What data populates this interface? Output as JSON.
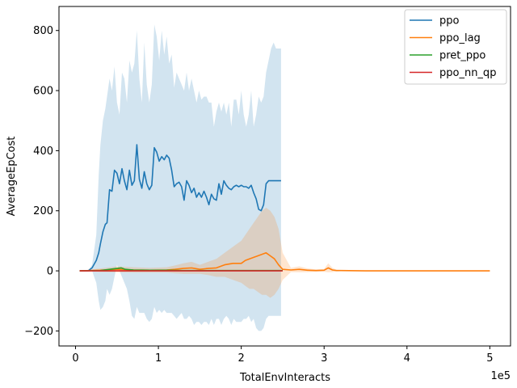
{
  "chart_data": {
    "type": "line",
    "xlabel": "TotalEnvInteracts",
    "ylabel": "AverageEpCost",
    "x_offset_label": "1e5",
    "xlim": [
      -0.2,
      5.25
    ],
    "ylim": [
      -250,
      880
    ],
    "x_ticks": [
      0,
      1,
      2,
      3,
      4,
      5
    ],
    "x_tick_labels": [
      "0",
      "1",
      "2",
      "3",
      "4",
      "5"
    ],
    "y_ticks": [
      -200,
      0,
      200,
      400,
      600,
      800
    ],
    "y_tick_labels": [
      "−200",
      "0",
      "200",
      "400",
      "600",
      "800"
    ],
    "grid": false,
    "legend_position": "top-right",
    "series": [
      {
        "name": "ppo",
        "color": "#1f77b4",
        "x": [
          0.05,
          0.15,
          0.2,
          0.25,
          0.28,
          0.3,
          0.33,
          0.36,
          0.38,
          0.41,
          0.44,
          0.47,
          0.5,
          0.53,
          0.56,
          0.59,
          0.62,
          0.65,
          0.68,
          0.71,
          0.74,
          0.77,
          0.8,
          0.83,
          0.86,
          0.89,
          0.92,
          0.95,
          0.98,
          1.01,
          1.04,
          1.07,
          1.1,
          1.13,
          1.16,
          1.19,
          1.22,
          1.25,
          1.28,
          1.31,
          1.34,
          1.37,
          1.4,
          1.43,
          1.46,
          1.49,
          1.52,
          1.55,
          1.58,
          1.61,
          1.64,
          1.67,
          1.7,
          1.73,
          1.76,
          1.79,
          1.82,
          1.85,
          1.88,
          1.91,
          1.94,
          1.97,
          2.0,
          2.03,
          2.06,
          2.09,
          2.12,
          2.15,
          2.18,
          2.21,
          2.24,
          2.27,
          2.3,
          2.33,
          2.36,
          2.39,
          2.42,
          2.45,
          2.48
        ],
        "y": [
          0,
          0,
          10,
          35,
          60,
          90,
          130,
          155,
          160,
          270,
          265,
          335,
          325,
          290,
          340,
          300,
          270,
          335,
          285,
          300,
          420,
          305,
          275,
          330,
          290,
          270,
          285,
          410,
          395,
          365,
          380,
          370,
          385,
          375,
          335,
          280,
          290,
          295,
          280,
          235,
          300,
          285,
          260,
          275,
          245,
          260,
          245,
          265,
          245,
          220,
          255,
          240,
          235,
          290,
          255,
          300,
          285,
          275,
          270,
          280,
          285,
          280,
          285,
          280,
          280,
          275,
          285,
          260,
          240,
          205,
          200,
          220,
          290,
          300,
          300,
          300,
          300,
          300,
          300
        ],
        "band_upper": [
          0,
          0,
          20,
          120,
          320,
          420,
          500,
          540,
          580,
          640,
          600,
          680,
          560,
          520,
          660,
          640,
          560,
          700,
          660,
          690,
          800,
          640,
          560,
          760,
          620,
          560,
          620,
          820,
          780,
          700,
          800,
          720,
          780,
          690,
          720,
          610,
          660,
          640,
          620,
          600,
          660,
          600,
          640,
          600,
          560,
          600,
          570,
          580,
          580,
          560,
          560,
          480,
          530,
          560,
          530,
          560,
          520,
          560,
          480,
          570,
          570,
          520,
          600,
          520,
          480,
          520,
          600,
          480,
          520,
          580,
          560,
          580,
          660,
          700,
          740,
          760,
          740,
          740,
          740
        ],
        "band_lower": [
          0,
          0,
          0,
          -40,
          -100,
          -130,
          -120,
          -100,
          -60,
          -80,
          -60,
          -20,
          20,
          0,
          -20,
          -40,
          -60,
          -100,
          -150,
          -160,
          -120,
          -140,
          -140,
          -140,
          -160,
          -170,
          -160,
          -120,
          -140,
          -130,
          -140,
          -130,
          -140,
          -140,
          -140,
          -150,
          -160,
          -150,
          -140,
          -160,
          -160,
          -150,
          -160,
          -180,
          -170,
          -170,
          -180,
          -170,
          -170,
          -180,
          -160,
          -180,
          -160,
          -160,
          -180,
          -160,
          -150,
          -160,
          -180,
          -160,
          -170,
          -170,
          -170,
          -160,
          -160,
          -150,
          -170,
          -160,
          -190,
          -200,
          -200,
          -190,
          -160,
          -150,
          -150,
          -150,
          -150,
          -150,
          -150
        ]
      },
      {
        "name": "ppo_lag",
        "color": "#ff7f0e",
        "x": [
          0.05,
          0.3,
          0.5,
          0.7,
          0.9,
          1.1,
          1.2,
          1.3,
          1.4,
          1.5,
          1.6,
          1.7,
          1.8,
          1.9,
          2.0,
          2.05,
          2.1,
          2.15,
          2.2,
          2.25,
          2.3,
          2.35,
          2.4,
          2.45,
          2.5,
          2.6,
          2.7,
          2.8,
          2.9,
          3.0,
          3.05,
          3.1,
          3.15,
          3.2,
          3.5,
          4.0,
          4.5,
          5.0
        ],
        "y": [
          0,
          2,
          5,
          3,
          2,
          3,
          5,
          8,
          10,
          5,
          8,
          10,
          20,
          25,
          25,
          35,
          40,
          45,
          50,
          55,
          60,
          50,
          40,
          20,
          5,
          3,
          5,
          2,
          1,
          2,
          10,
          3,
          1,
          1,
          0,
          0,
          0,
          0
        ],
        "band_upper": [
          0,
          8,
          15,
          12,
          10,
          12,
          18,
          25,
          30,
          20,
          30,
          40,
          60,
          80,
          100,
          120,
          140,
          160,
          180,
          200,
          210,
          200,
          180,
          140,
          60,
          10,
          15,
          8,
          5,
          6,
          25,
          10,
          4,
          3,
          1,
          1,
          1,
          1
        ],
        "band_lower": [
          0,
          -4,
          -5,
          -6,
          -6,
          -6,
          -8,
          -10,
          -10,
          -10,
          -14,
          -20,
          -20,
          -30,
          -40,
          -50,
          -60,
          -60,
          -70,
          -80,
          -80,
          -90,
          -80,
          -60,
          -30,
          -4,
          -5,
          -4,
          -3,
          -3,
          -5,
          -4,
          -2,
          -1,
          -1,
          -1,
          -1,
          -1
        ]
      },
      {
        "name": "pret_ppo",
        "color": "#2ca02c",
        "x": [
          0.05,
          0.3,
          0.5,
          0.55,
          0.6,
          0.7,
          0.9,
          1.1,
          1.3,
          1.5,
          1.7,
          2.0,
          2.3,
          2.5
        ],
        "y": [
          0,
          1,
          8,
          10,
          5,
          3,
          2,
          2,
          1,
          1,
          1,
          1,
          1,
          1
        ]
      },
      {
        "name": "ppo_nn_qp",
        "color": "#d62728",
        "x": [
          0.05,
          0.5,
          1.0,
          1.5,
          2.0,
          2.5
        ],
        "y": [
          0,
          0,
          0,
          0,
          0,
          0
        ]
      }
    ]
  }
}
